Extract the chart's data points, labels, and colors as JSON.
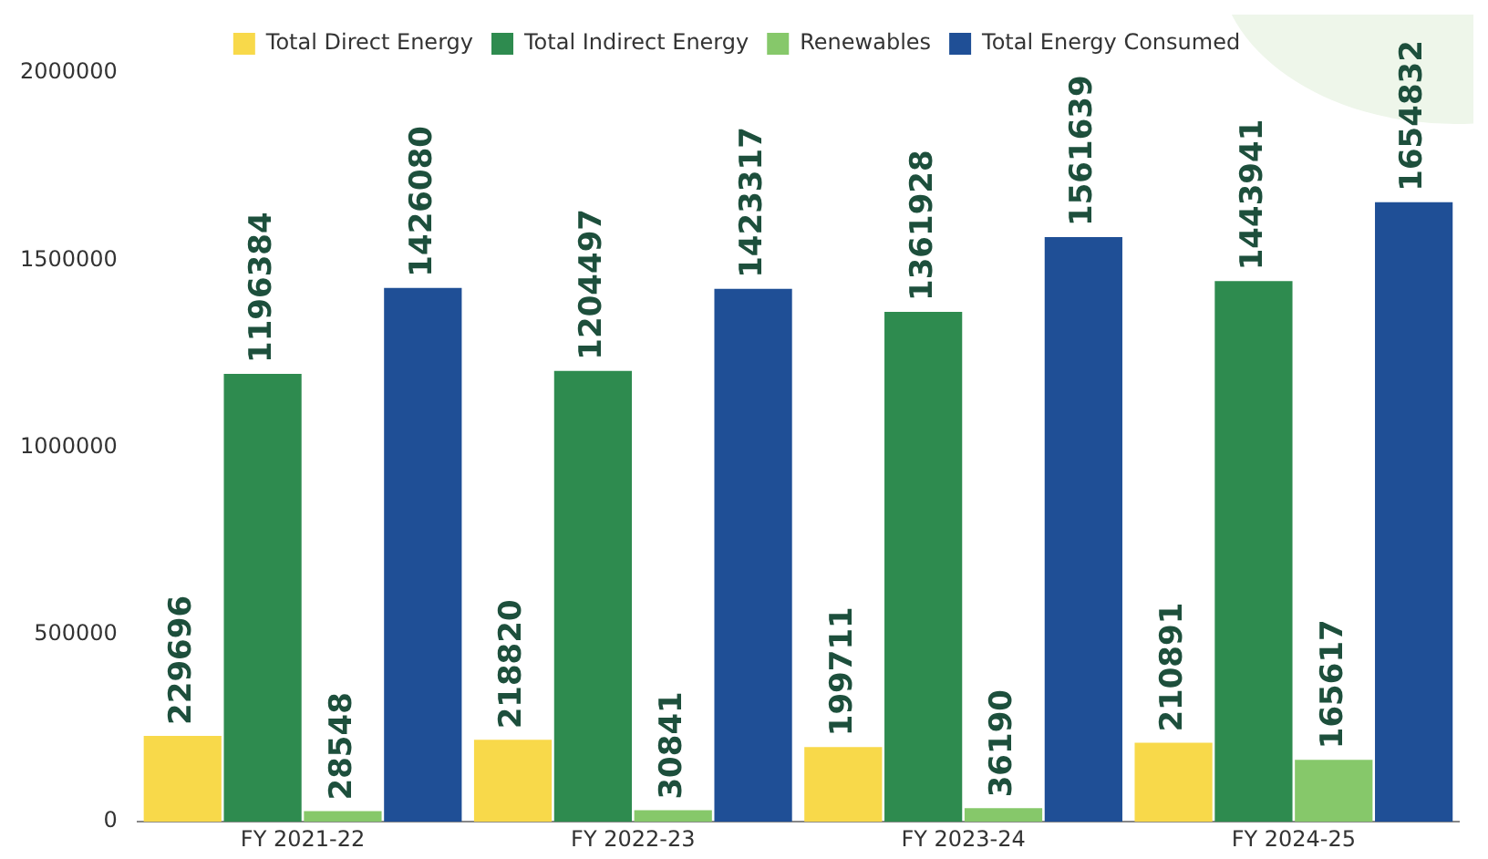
{
  "chart_data": {
    "type": "bar",
    "categories": [
      "FY 2021-22",
      "FY 2022-23",
      "FY 2023-24",
      "FY 2024-25"
    ],
    "series": [
      {
        "name": "Total Direct Energy",
        "color": "#f8d94a",
        "values": [
          229696,
          218820,
          199711,
          210891
        ]
      },
      {
        "name": "Total Indirect Energy",
        "color": "#2e8b4f",
        "values": [
          1196384,
          1204497,
          1361928,
          1443941
        ]
      },
      {
        "name": "Renewables",
        "color": "#86c86a",
        "values": [
          28548,
          30841,
          36190,
          165617
        ]
      },
      {
        "name": "Total Energy Consumed",
        "color": "#1f4f96",
        "values": [
          1426080,
          1423317,
          1561639,
          1654832
        ]
      }
    ],
    "ylim": [
      0,
      2000000
    ],
    "yticks": [
      0,
      500000,
      1000000,
      1500000,
      2000000
    ],
    "grid": false,
    "legend": "top",
    "data_labels": true
  }
}
